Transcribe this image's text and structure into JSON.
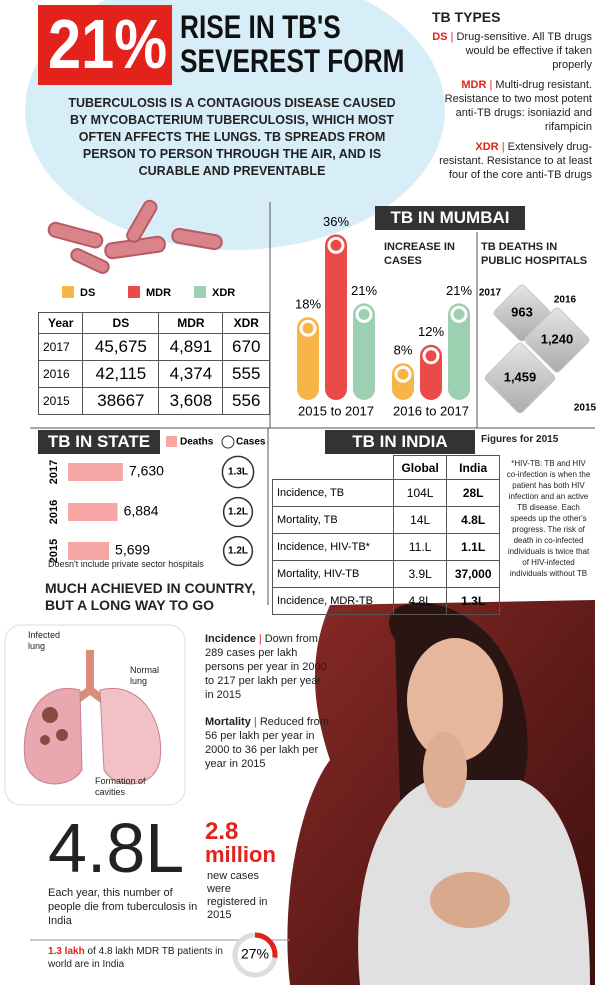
{
  "separator": "|",
  "header": {
    "figure": "21%",
    "title": "RISE IN TB'S SEVEREST FORM"
  },
  "intro": "TUBERCULOSIS IS A CONTAGIOUS DISEASE CAUSED BY MYCOBACTERIUM TUBERCULOSIS, WHICH MOST OFTEN AFFECTS THE LUNGS. TB SPREADS FROM PERSON TO PERSON THROUGH THE AIR, AND IS CURABLE AND PREVENTABLE",
  "tb_types": {
    "title": "TB TYPES",
    "items": [
      {
        "code": "DS",
        "text": "Drug-sensitive. All TB drugs would be effective if taken properly"
      },
      {
        "code": "MDR",
        "text": "Multi-drug resistant. Resistance to two most potent anti-TB drugs: isoniazid and rifampicin"
      },
      {
        "code": "XDR",
        "text": "Extensively drug-resistant. Resistance to at least four of the core anti-TB drugs"
      }
    ]
  },
  "national_table": {
    "columns": [
      "Year",
      "DS",
      "MDR",
      "XDR"
    ],
    "rows": [
      [
        "2017",
        "45,675",
        "4,891",
        "670"
      ],
      [
        "2016",
        "42,115",
        "4,374",
        "555"
      ],
      [
        "2015",
        "38667",
        "3,608",
        "556"
      ]
    ]
  },
  "chart_data": [
    {
      "type": "bar",
      "title": "TB IN MUMBAI",
      "subtitle": "INCREASE IN CASES",
      "categories": [
        "2015 to 2017",
        "2016 to 2017"
      ],
      "series": [
        {
          "name": "DS",
          "color": "#f7b548",
          "values": [
            18,
            8
          ],
          "value_labels": [
            "18%",
            "8%"
          ]
        },
        {
          "name": "MDR",
          "color": "#ea4b46",
          "values": [
            36,
            12
          ],
          "value_labels": [
            "36%",
            "12%"
          ]
        },
        {
          "name": "XDR",
          "color": "#9dd0b0",
          "values": [
            21,
            21
          ],
          "value_labels": [
            "21%",
            "21%"
          ]
        }
      ]
    },
    {
      "type": "diamond",
      "title": "TB DEATHS IN PUBLIC HOSPITALS",
      "color": "#c9c9c9",
      "categories": [
        "2017",
        "2016",
        "2015"
      ],
      "values": [
        963,
        1240,
        1459
      ],
      "value_labels": [
        "963",
        "1,240",
        "1,459"
      ]
    },
    {
      "type": "hbar",
      "title": "TB IN STATE",
      "note": "Doesn't include private sector hospitals",
      "categories": [
        "2017",
        "2016",
        "2015"
      ],
      "series": [
        {
          "name": "Deaths",
          "color": "#f6a7a5",
          "values": [
            7630,
            6884,
            5699
          ],
          "value_labels": [
            "7,630",
            "6,884",
            "5,699"
          ]
        },
        {
          "name": "Cases",
          "color": "#ffffff",
          "values": [
            1.3,
            1.2,
            1.2
          ],
          "value_labels": [
            "1.3L",
            "1.2L",
            "1.2L"
          ]
        }
      ]
    },
    {
      "type": "donut",
      "color": "#e3221b",
      "values": [
        27
      ],
      "value_labels": [
        "27%"
      ]
    }
  ],
  "india_table": {
    "title": "TB IN INDIA",
    "note": "Figures for 2015",
    "columns": [
      "Global",
      "India"
    ],
    "rows": [
      {
        "label": "Incidence, TB",
        "values": [
          "104L",
          "28L"
        ]
      },
      {
        "label": "Mortality, TB",
        "values": [
          "14L",
          "4.8L"
        ]
      },
      {
        "label": "Incidence, HIV-TB*",
        "values": [
          "11.L",
          "1.1L"
        ]
      },
      {
        "label": "Mortality, HIV-TB",
        "values": [
          "3.9L",
          "37,000"
        ]
      },
      {
        "label": "Incidence, MDR-TB",
        "values": [
          "4.8L",
          "1.3L"
        ]
      }
    ],
    "footnote": "*HIV-TB: TB and HIV co-infection is when the patient has both HIV infection and an active TB disease. Each speeds up the other's progress. The risk of death in co-infected individuals is twice that of HIV-infected individuals without TB"
  },
  "progress": {
    "title": "MUCH ACHIEVED IN COUNTRY, BUT A LONG WAY TO GO",
    "lung_labels": [
      "Infected lung",
      "Normal lung",
      "Formation of cavities"
    ],
    "incidence": {
      "label": "Incidence",
      "text": "Down from 289 cases per lakh persons per year in 2000 to 217 per lakh per year in 2015"
    },
    "mortality": {
      "label": "Mortality",
      "text": "Reduced from 56 per lakh per year in 2000 to 36 per lakh per year in 2015"
    }
  },
  "deaths": {
    "figure": "4.8L",
    "text": "Each year, this number of people die from tuberculosis in India"
  },
  "new_cases": {
    "figure": "2.8",
    "unit": "million",
    "text": "new cases were registered in 2015"
  },
  "mdr_share": {
    "highlight": "1.3 lakh",
    "text": "of 4.8 lakh MDR TB patients in world are in India"
  }
}
